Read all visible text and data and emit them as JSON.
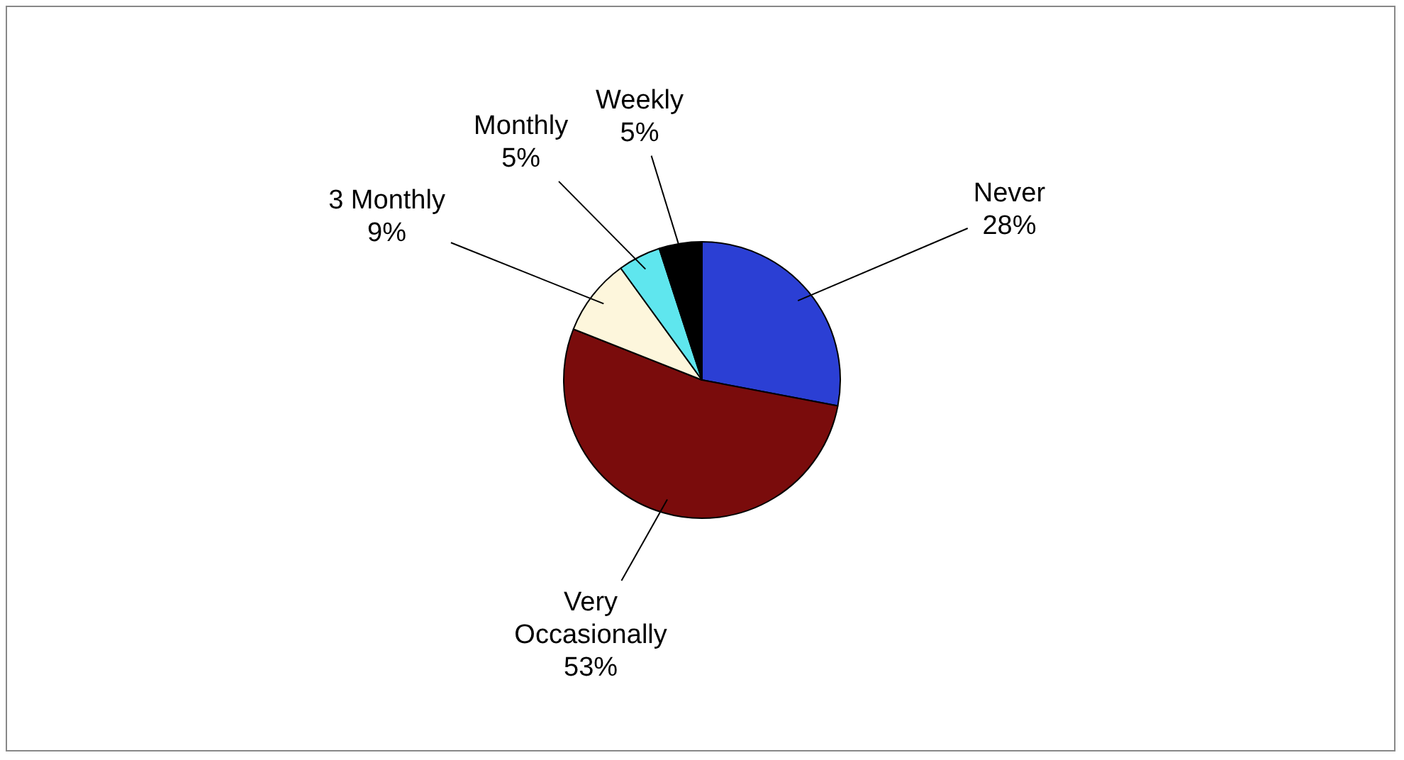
{
  "chart_data": {
    "type": "pie",
    "categories": [
      "Never",
      "Very Occasionally",
      "3 Monthly",
      "Monthly",
      "Weekly"
    ],
    "values": [
      28,
      53,
      9,
      5,
      5
    ],
    "value_labels": [
      "28%",
      "53%",
      "9%",
      "5%",
      "5%"
    ],
    "colors": [
      "#2b3fd4",
      "#7a0c0c",
      "#fdf6dc",
      "#5fe6ee",
      "#000000"
    ],
    "legend": false
  }
}
